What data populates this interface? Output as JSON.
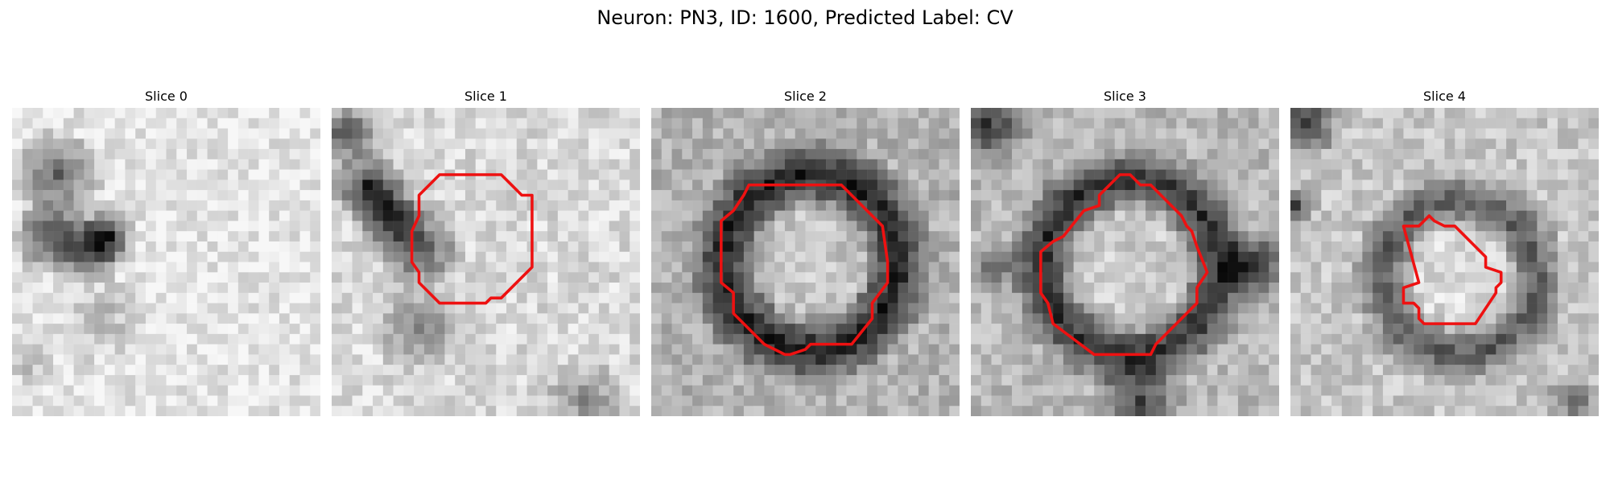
{
  "figure": {
    "title": "Neuron: PN3, ID: 1600, Predicted Label: CV",
    "outline_color": "#ee1111",
    "colormap": "gray",
    "slices": [
      {
        "title": "Slice 0",
        "has_outline": false
      },
      {
        "title": "Slice 1",
        "has_outline": true
      },
      {
        "title": "Slice 2",
        "has_outline": true
      },
      {
        "title": "Slice 3",
        "has_outline": true
      },
      {
        "title": "Slice 4",
        "has_outline": true
      }
    ]
  }
}
